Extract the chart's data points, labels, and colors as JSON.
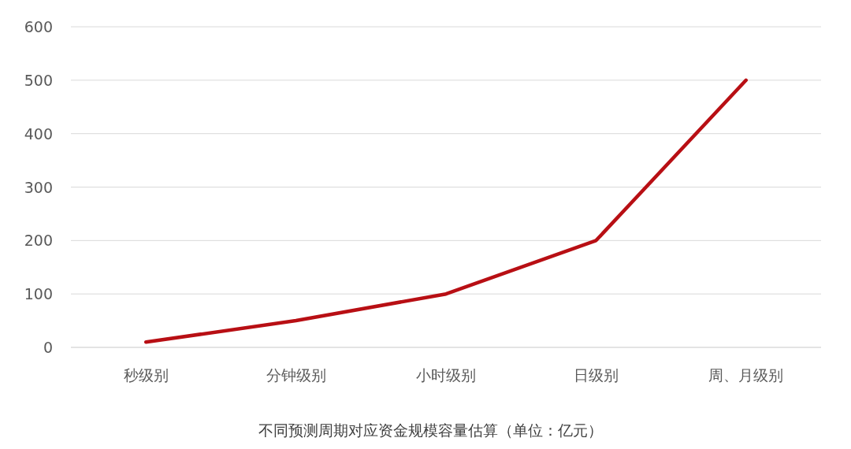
{
  "chart_data": {
    "type": "line",
    "xlabel": "不同预测周期对应资金规模容量估算（单位：亿元）",
    "categories": [
      "秒级别",
      "分钟级别",
      "小时级别",
      "日级别",
      "周、月级别"
    ],
    "series": [
      {
        "color": "#b80f14",
        "values": [
          10,
          50,
          100,
          200,
          500
        ]
      }
    ],
    "ylim": [
      0,
      600
    ],
    "yticks": [
      0,
      100,
      200,
      300,
      400,
      500,
      600
    ],
    "grid": "y",
    "marker": "none",
    "line_style": "solid"
  }
}
